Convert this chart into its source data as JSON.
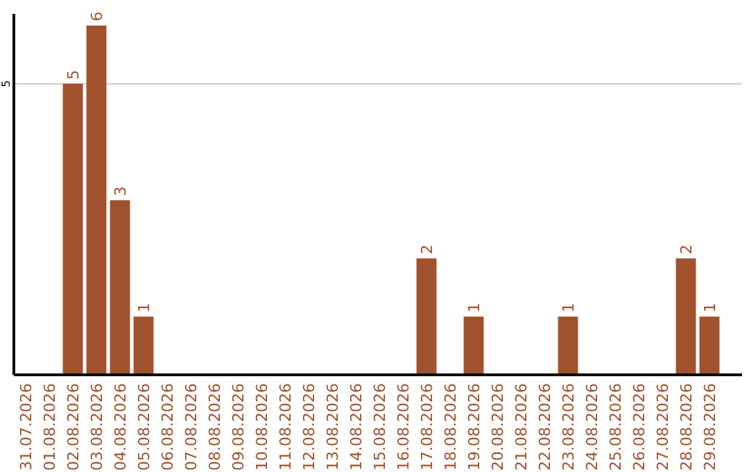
{
  "chart_data": {
    "type": "bar",
    "categories": [
      "31.07.2026",
      "01.08.2026",
      "02.08.2026",
      "03.08.2026",
      "04.08.2026",
      "05.08.2026",
      "06.08.2026",
      "07.08.2026",
      "08.08.2026",
      "09.08.2026",
      "10.08.2026",
      "11.08.2026",
      "12.08.2026",
      "13.08.2026",
      "14.08.2026",
      "15.08.2026",
      "16.08.2026",
      "17.08.2026",
      "18.08.2026",
      "19.08.2026",
      "20.08.2026",
      "21.08.2026",
      "22.08.2026",
      "23.08.2026",
      "24.08.2026",
      "25.08.2026",
      "26.08.2026",
      "27.08.2026",
      "28.08.2026",
      "29.08.2026"
    ],
    "values": [
      0,
      0,
      5,
      6,
      3,
      1,
      0,
      0,
      0,
      0,
      0,
      0,
      0,
      0,
      0,
      0,
      0,
      2,
      0,
      1,
      0,
      0,
      0,
      1,
      0,
      0,
      0,
      0,
      2,
      1
    ],
    "value_labels": [
      null,
      null,
      "5",
      "6",
      "3",
      "1",
      null,
      null,
      null,
      null,
      null,
      null,
      null,
      null,
      null,
      null,
      null,
      "2",
      null,
      "1",
      null,
      null,
      null,
      "1",
      null,
      null,
      null,
      null,
      "2",
      "1"
    ],
    "color": "#a0522d",
    "ylim": [
      0,
      6.2
    ],
    "yticks": [
      5
    ],
    "grid": "y"
  }
}
